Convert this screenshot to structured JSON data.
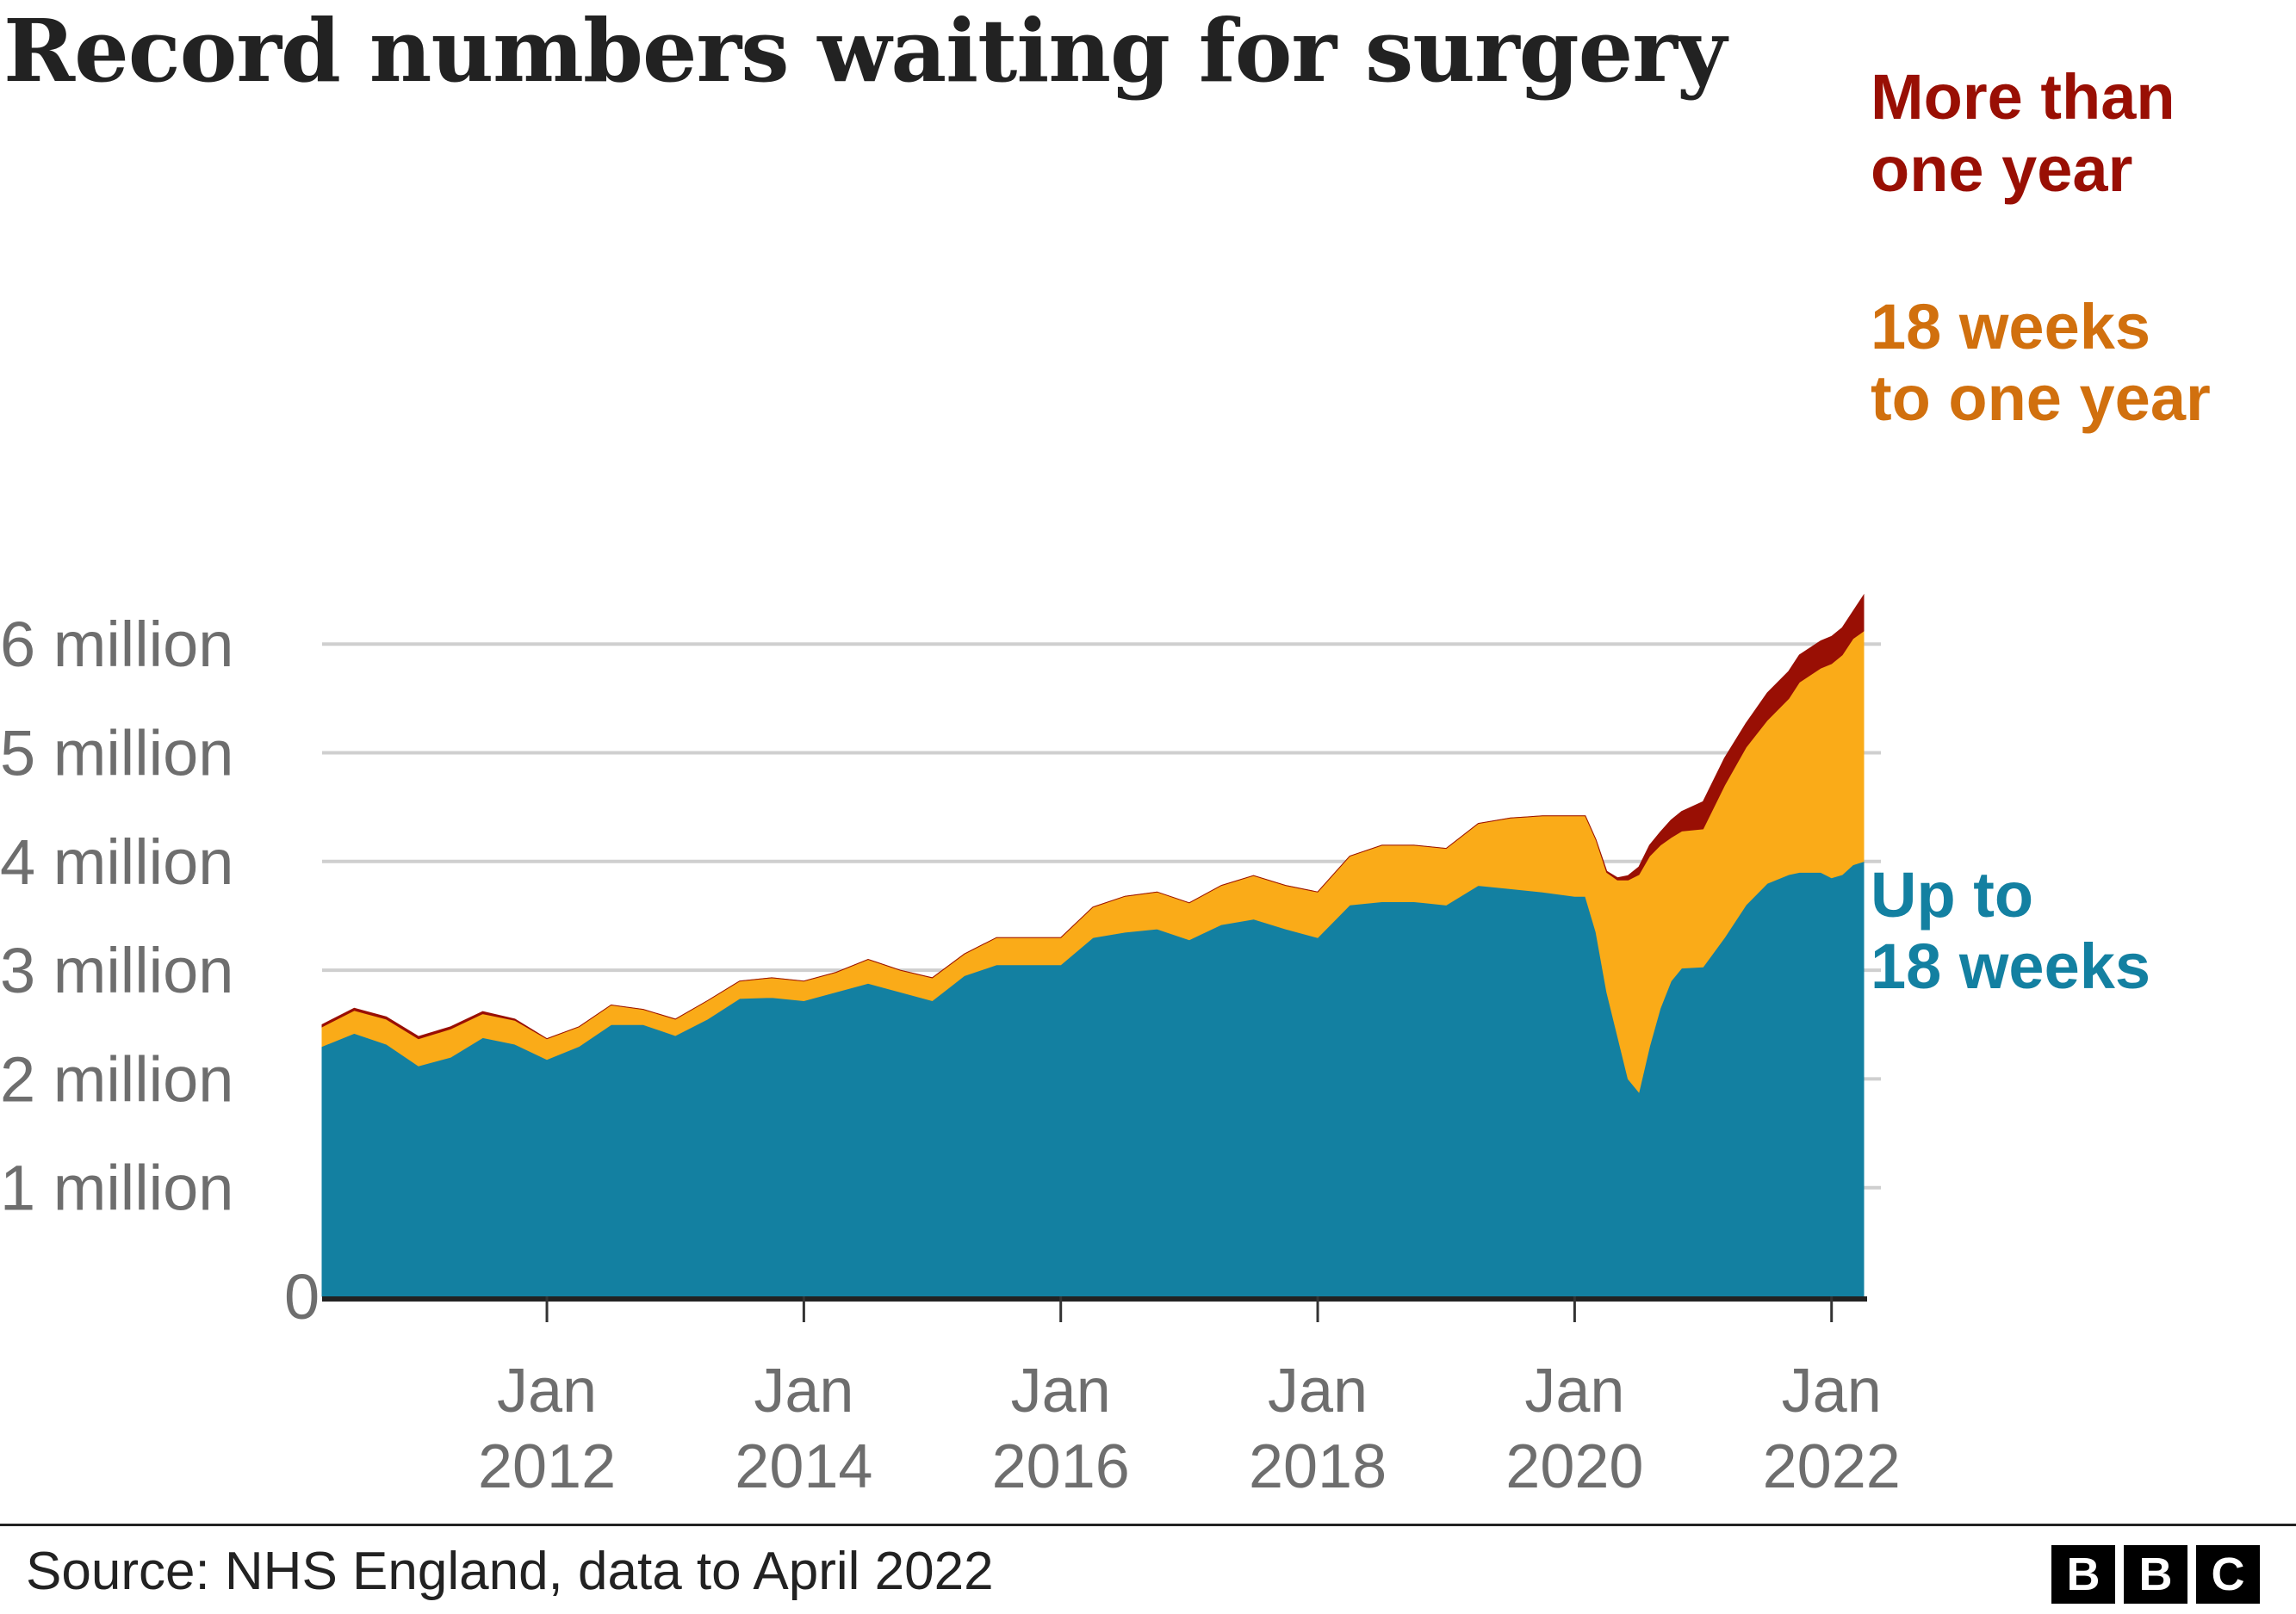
{
  "chart_data": {
    "type": "area",
    "stacked": true,
    "title": "Record numbers waiting for surgery",
    "y_tick_labels": [
      "0",
      "1 million",
      "2 million",
      "3 million",
      "4 million",
      "5 million",
      "6 million"
    ],
    "y_ticks": [
      0,
      1,
      2,
      3,
      4,
      5,
      6
    ],
    "ylim": [
      0,
      6.5
    ],
    "y_unit": "million",
    "x_tick_labels": [
      [
        "Jan",
        "2012"
      ],
      [
        "Jan",
        "2014"
      ],
      [
        "Jan",
        "2016"
      ],
      [
        "Jan",
        "2018"
      ],
      [
        "Jan",
        "2020"
      ],
      [
        "Jan",
        "2022"
      ]
    ],
    "x_ticks": [
      "2012-01",
      "2014-01",
      "2016-01",
      "2018-01",
      "2020-01",
      "2022-01"
    ],
    "xlim": [
      "2010-04",
      "2022-04"
    ],
    "grid": "horizontal",
    "legend": "direct labels at right",
    "x": [
      "2010-04",
      "2010-07",
      "2010-10",
      "2011-01",
      "2011-04",
      "2011-07",
      "2011-10",
      "2012-01",
      "2012-04",
      "2012-07",
      "2012-10",
      "2013-01",
      "2013-04",
      "2013-07",
      "2013-10",
      "2014-01",
      "2014-04",
      "2014-07",
      "2014-10",
      "2015-01",
      "2015-04",
      "2015-07",
      "2015-10",
      "2016-01",
      "2016-04",
      "2016-07",
      "2016-10",
      "2017-01",
      "2017-04",
      "2017-07",
      "2017-10",
      "2018-01",
      "2018-04",
      "2018-07",
      "2018-10",
      "2019-01",
      "2019-04",
      "2019-07",
      "2019-10",
      "2020-01",
      "2020-02",
      "2020-03",
      "2020-04",
      "2020-05",
      "2020-06",
      "2020-07",
      "2020-08",
      "2020-09",
      "2020-10",
      "2020-11",
      "2021-01",
      "2021-03",
      "2021-05",
      "2021-07",
      "2021-09",
      "2021-10",
      "2021-12",
      "2022-01",
      "2022-02",
      "2022-03",
      "2022-04"
    ],
    "series": [
      {
        "name": "Up to 18 weeks",
        "label_lines": [
          "Up to",
          "18 weeks"
        ],
        "color": "#1380A1",
        "label_color": "#1380A1",
        "values": [
          2.3,
          2.42,
          2.32,
          2.12,
          2.2,
          2.38,
          2.32,
          2.18,
          2.3,
          2.5,
          2.5,
          2.4,
          2.55,
          2.74,
          2.75,
          2.72,
          2.8,
          2.88,
          2.8,
          2.72,
          2.95,
          3.05,
          3.05,
          3.05,
          3.3,
          3.35,
          3.38,
          3.28,
          3.42,
          3.47,
          3.38,
          3.3,
          3.6,
          3.63,
          3.63,
          3.6,
          3.78,
          3.75,
          3.72,
          3.68,
          3.68,
          3.35,
          2.8,
          2.4,
          2.0,
          1.88,
          2.3,
          2.65,
          2.9,
          3.02,
          3.03,
          3.3,
          3.6,
          3.8,
          3.88,
          3.9,
          3.9,
          3.85,
          3.88,
          3.97,
          4.0
        ]
      },
      {
        "name": "18 weeks to one year",
        "label_lines": [
          "18 weeks",
          "to one year"
        ],
        "color": "#FAAB18",
        "label_color": "#D1700E",
        "values": [
          0.18,
          0.21,
          0.23,
          0.25,
          0.26,
          0.22,
          0.22,
          0.19,
          0.18,
          0.18,
          0.14,
          0.15,
          0.17,
          0.16,
          0.18,
          0.18,
          0.18,
          0.22,
          0.2,
          0.21,
          0.2,
          0.25,
          0.25,
          0.25,
          0.28,
          0.33,
          0.34,
          0.34,
          0.36,
          0.4,
          0.4,
          0.42,
          0.45,
          0.52,
          0.52,
          0.52,
          0.57,
          0.65,
          0.7,
          0.74,
          0.74,
          0.85,
          1.1,
          1.43,
          1.83,
          2.0,
          1.75,
          1.5,
          1.32,
          1.26,
          1.27,
          1.4,
          1.45,
          1.5,
          1.62,
          1.75,
          1.88,
          1.97,
          2.02,
          2.08,
          2.12
        ]
      },
      {
        "name": "More than one year",
        "label_lines": [
          "More than",
          "one year"
        ],
        "color": "#990F04",
        "label_color": "#990F04",
        "values": [
          0.02,
          0.02,
          0.02,
          0.02,
          0.02,
          0.02,
          0.01,
          0,
          0,
          0,
          0,
          0,
          0,
          0,
          0,
          0,
          0,
          0,
          0,
          0,
          0,
          0,
          0,
          0,
          0,
          0,
          0,
          0,
          0,
          0,
          0,
          0,
          0,
          0,
          0,
          0,
          0,
          0,
          0,
          0,
          0,
          0,
          0.01,
          0.02,
          0.04,
          0.07,
          0.1,
          0.12,
          0.16,
          0.18,
          0.25,
          0.25,
          0.22,
          0.25,
          0.25,
          0.25,
          0.25,
          0.25,
          0.25,
          0.25,
          0.33
        ]
      }
    ]
  },
  "footer": {
    "source": "Source: NHS England, data to April 2022",
    "logo_letters": [
      "B",
      "B",
      "C"
    ]
  }
}
